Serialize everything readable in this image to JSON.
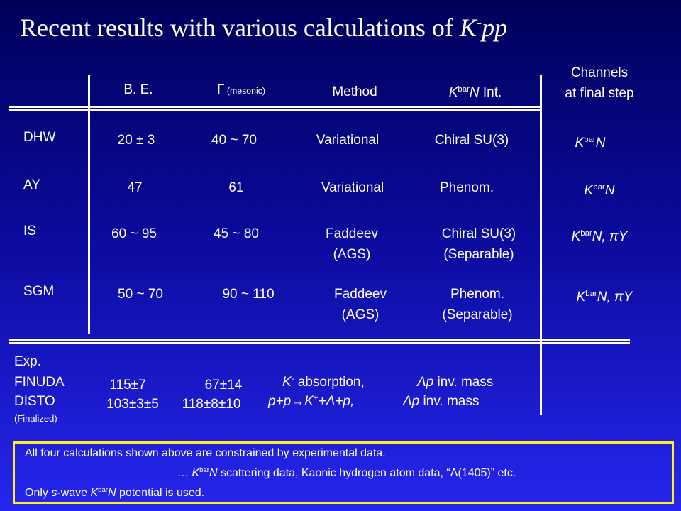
{
  "title": [
    {
      "text": "Recent results with various calculations of "
    },
    {
      "text": "K",
      "italic": true
    },
    {
      "text": "-",
      "sup": true
    },
    {
      "text": "pp",
      "italic": true
    }
  ],
  "header": [
    [
      [
        {
          "text": "B. E."
        }
      ]
    ],
    [
      [
        {
          "text": "Γ"
        },
        {
          "text": " (mesonic)",
          "small": true
        }
      ]
    ],
    [
      [
        {
          "text": "Method"
        }
      ]
    ],
    [
      [
        {
          "text": "K",
          "italic": true
        },
        {
          "text": "bar",
          "sup": true
        },
        {
          "text": "N",
          "italic": true
        },
        {
          "text": " Int."
        }
      ]
    ],
    [
      [
        {
          "text": "Channels"
        }
      ],
      [
        {
          "text": "at final step"
        }
      ]
    ]
  ],
  "rows": [
    {
      "name": "DHW",
      "cells": [
        [
          [
            {
              "text": "20 ± 3"
            }
          ]
        ],
        [
          [
            {
              "text": "40  ~  70"
            }
          ]
        ],
        [
          [
            {
              "text": "Variational"
            }
          ]
        ],
        [
          [
            {
              "text": "Chiral SU(3)"
            }
          ]
        ],
        [
          [
            {
              "text": "K",
              "italic": true
            },
            {
              "text": "bar",
              "sup": true
            },
            {
              "text": "N",
              "italic": true
            }
          ]
        ]
      ]
    },
    {
      "name": "AY",
      "cells": [
        [
          [
            {
              "text": "47"
            }
          ]
        ],
        [
          [
            {
              "text": "61"
            }
          ]
        ],
        [
          [
            {
              "text": "Variational"
            }
          ]
        ],
        [
          [
            {
              "text": "Phenom."
            }
          ]
        ],
        [
          [
            {
              "text": "K",
              "italic": true
            },
            {
              "text": "bar",
              "sup": true
            },
            {
              "text": "N",
              "italic": true
            }
          ]
        ]
      ]
    },
    {
      "name": "IS",
      "cells": [
        [
          [
            {
              "text": "60  ~  95"
            }
          ]
        ],
        [
          [
            {
              "text": "45  ~  80"
            }
          ]
        ],
        [
          [
            {
              "text": "Faddeev"
            }
          ],
          [
            {
              "text": "(AGS)"
            }
          ]
        ],
        [
          [
            {
              "text": "Chiral SU(3)"
            }
          ],
          [
            {
              "text": "(Separable)"
            }
          ]
        ],
        [
          [
            {
              "text": "K",
              "italic": true
            },
            {
              "text": "bar",
              "sup": true
            },
            {
              "text": "N, πY",
              "italic": true
            }
          ]
        ]
      ]
    },
    {
      "name": "SGM",
      "cells": [
        [
          [
            {
              "text": "50 ~ 70"
            }
          ]
        ],
        [
          [
            {
              "text": "90  ~  110"
            }
          ]
        ],
        [
          [
            {
              "text": "Faddeev"
            }
          ],
          [
            {
              "text": "(AGS)"
            }
          ]
        ],
        [
          [
            {
              "text": "Phenom."
            }
          ],
          [
            {
              "text": "(Separable)"
            }
          ]
        ],
        [
          [
            {
              "text": "K",
              "italic": true
            },
            {
              "text": "bar",
              "sup": true
            },
            {
              "text": "N, πY",
              "italic": true
            }
          ]
        ]
      ]
    }
  ],
  "experiments": {
    "label": "Exp.",
    "items": [
      {
        "name": "FINUDA",
        "fields": [
          [
            {
              "text": "115±7"
            }
          ],
          [
            {
              "text": "67±14"
            }
          ],
          [
            {
              "text": "K",
              "italic": true
            },
            {
              "text": "-",
              "sup": true
            },
            {
              "text": " absorption,"
            }
          ],
          [
            {
              "text": "Λp",
              "italic": true
            },
            {
              "text": " inv. mass"
            }
          ]
        ]
      },
      {
        "name": "DISTO",
        "note": "(Finalized)",
        "fields": [
          [
            {
              "text": "103±3±5"
            }
          ],
          [
            {
              "text": "118±8±10"
            }
          ],
          [
            {
              "text": "p+p→K",
              "italic": true
            },
            {
              "text": "+",
              "sup": true
            },
            {
              "text": "+Λ+p,",
              "italic": true
            }
          ],
          [
            {
              "text": "Λp",
              "italic": true
            },
            {
              "text": " inv. mass"
            }
          ]
        ]
      }
    ]
  },
  "note": [
    [
      {
        "text": "All four calculations shown above are constrained by experimental data."
      }
    ],
    [
      {
        "text": "… "
      },
      {
        "text": "K",
        "italic": true
      },
      {
        "text": "bar",
        "sup": true
      },
      {
        "text": "N",
        "italic": true
      },
      {
        "text": " scattering data, Kaonic hydrogen atom data, “Λ(1405)” etc."
      }
    ],
    [
      {
        "text": "Only "
      },
      {
        "text": "s",
        "italic": true
      },
      {
        "text": "-wave "
      },
      {
        "text": "K",
        "italic": true
      },
      {
        "text": "bar",
        "sup": true
      },
      {
        "text": "N",
        "italic": true
      },
      {
        "text": " potential is used."
      }
    ]
  ]
}
